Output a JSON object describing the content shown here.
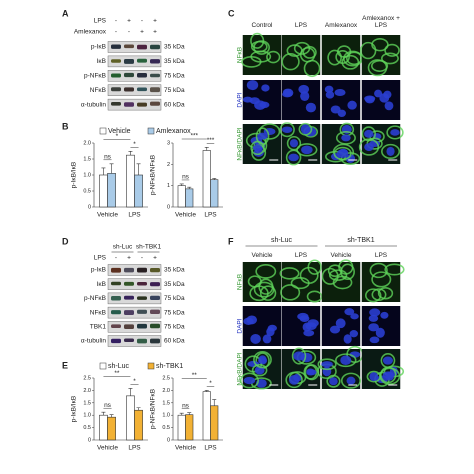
{
  "panel_labels": [
    "A",
    "B",
    "C",
    "D",
    "E",
    "F"
  ],
  "blot_a": {
    "conditions": [
      {
        "label": "LPS",
        "signs": [
          "-",
          "+",
          "-",
          "+"
        ]
      },
      {
        "label": "Amlexanox",
        "signs": [
          "-",
          "-",
          "+",
          "+"
        ]
      }
    ],
    "rows": [
      {
        "label": "p-IκB",
        "size": "35 kDa"
      },
      {
        "label": "IκB",
        "size": "35 kDa"
      },
      {
        "label": "p-NFκB",
        "size": "75 kDa"
      },
      {
        "label": "NFκB",
        "size": "75 kDa"
      },
      {
        "label": "α-tubulin",
        "size": "60 kDa"
      }
    ]
  },
  "blot_d": {
    "groups": [
      "sh-Luc",
      "sh-TBK1"
    ],
    "conditions": [
      {
        "label": "LPS",
        "signs": [
          "-",
          "+",
          "-",
          "+"
        ]
      }
    ],
    "rows": [
      {
        "label": "p-IκB",
        "size": "35 kDa"
      },
      {
        "label": "IκB",
        "size": "35 kDa"
      },
      {
        "label": "p-NFκB",
        "size": "75 kDa"
      },
      {
        "label": "NFκB",
        "size": "75 kDa"
      },
      {
        "label": "TBK1",
        "size": "75 kDa"
      },
      {
        "label": "α-tubulin",
        "size": "60 kDa"
      }
    ]
  },
  "images_c": {
    "columns": [
      "Control",
      "LPS",
      "Amlexanox",
      "Amlexanox + LPS"
    ],
    "rows": [
      "NFκB",
      "DAPI",
      "NFκB/DAPI"
    ]
  },
  "images_f": {
    "groups": [
      "sh-Luc",
      "sh-TBK1"
    ],
    "columns": [
      "Vehicle",
      "LPS",
      "Vehicle",
      "LPS"
    ],
    "rows": [
      "NFκB",
      "DAPI",
      "NFκB/DAPI"
    ]
  },
  "chart_data": [
    {
      "type": "bar",
      "y_label": "p-IκB/IκB",
      "categories": [
        "Vehicle",
        "LPS"
      ],
      "series": [
        {
          "name": "Vehicle",
          "color": "#ffffff",
          "values": [
            1.0,
            1.62
          ],
          "errors": [
            0.22,
            0.12
          ]
        },
        {
          "name": "Amlexanox",
          "color": "#a9cbe8",
          "values": [
            1.05,
            1.0
          ],
          "errors": [
            0.3,
            0.35
          ]
        }
      ],
      "ylim": [
        0,
        2
      ],
      "yticks": [
        0,
        0.5,
        {
          "value": 1,
          "label": "1.0"
        },
        1.5,
        {
          "value": 2,
          "label": "2.0"
        }
      ],
      "annotations": [
        "ns",
        "*",
        "*"
      ]
    },
    {
      "type": "bar",
      "y_label": "p-NFκB/NFκB",
      "categories": [
        "Vehicle",
        "LPS"
      ],
      "series": [
        {
          "name": "Vehicle",
          "color": "#ffffff",
          "values": [
            1.0,
            2.65
          ],
          "errors": [
            0.08,
            0.15
          ]
        },
        {
          "name": "Amlexanox",
          "color": "#a9cbe8",
          "values": [
            0.85,
            1.28
          ],
          "errors": [
            0.08,
            0.06
          ]
        }
      ],
      "ylim": [
        0,
        3
      ],
      "yticks": [
        0,
        1,
        2,
        3
      ],
      "annotations": [
        "ns",
        "***",
        "***"
      ]
    },
    {
      "type": "bar",
      "y_label": "p-IκB/IκB",
      "categories": [
        "Vehicle",
        "LPS"
      ],
      "series": [
        {
          "name": "sh-Luc",
          "color": "#ffffff",
          "values": [
            1.0,
            1.78
          ],
          "errors": [
            0.12,
            0.3
          ]
        },
        {
          "name": "sh-TBK1",
          "color": "#f2b134",
          "values": [
            0.92,
            1.2
          ],
          "errors": [
            0.1,
            0.1
          ]
        }
      ],
      "ylim": [
        0,
        2.5
      ],
      "yticks": [
        0,
        0.5,
        {
          "value": 1,
          "label": "1.0"
        },
        1.5,
        {
          "value": 2,
          "label": "2.0"
        },
        2.5
      ],
      "annotations": [
        "ns",
        "*",
        "**"
      ]
    },
    {
      "type": "bar",
      "y_label": "p-NFκB/NFκB",
      "categories": [
        "Vehicle",
        "LPS"
      ],
      "series": [
        {
          "name": "sh-Luc",
          "color": "#ffffff",
          "values": [
            1.0,
            1.95
          ],
          "errors": [
            0.08,
            0.05
          ]
        },
        {
          "name": "sh-TBK1",
          "color": "#f2b134",
          "values": [
            1.02,
            1.38
          ],
          "errors": [
            0.08,
            0.25
          ]
        }
      ],
      "ylim": [
        0,
        2.5
      ],
      "yticks": [
        0,
        0.5,
        {
          "value": 1,
          "label": "1.0"
        },
        1.5,
        {
          "value": 2,
          "label": "2.0"
        },
        2.5
      ],
      "annotations": [
        "ns",
        "*",
        "**"
      ]
    }
  ]
}
